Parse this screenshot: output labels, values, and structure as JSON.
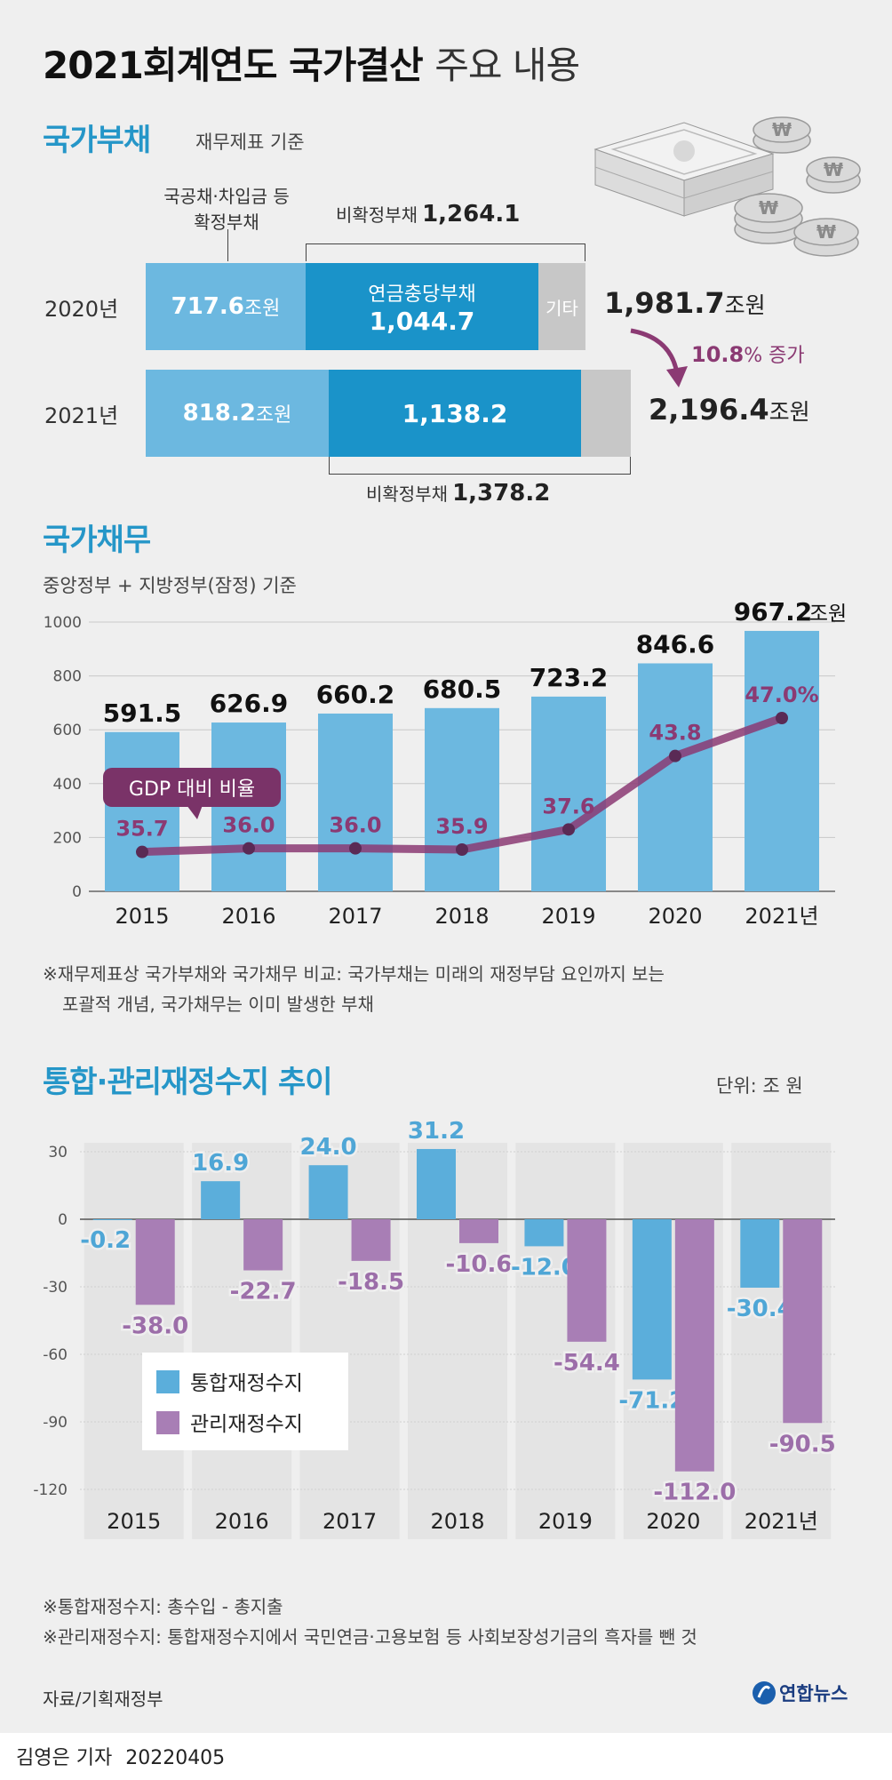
{
  "header": {
    "title_bold": "2021회계연도 국가결산",
    "title_light": "주요 내용"
  },
  "debt_section": {
    "title": "국가부채",
    "subtitle": "재무제표 기준",
    "definite_label_line1": "국공채·차입금 등",
    "definite_label_line2": "확정부채",
    "nondef_2020_label": "비확정부채",
    "nondef_2020_value": "1,264.1",
    "nondef_2021_label": "비확정부채",
    "nondef_2021_value": "1,378.2",
    "rows": [
      {
        "year": "2020년",
        "definite": "717.6",
        "definite_unit": "조원",
        "pension_label": "연금충당부채",
        "pension": "1,044.7",
        "other_label": "기타",
        "total": "1,981.7",
        "total_unit": "조원"
      },
      {
        "year": "2021년",
        "definite": "818.2",
        "definite_unit": "조원",
        "pension_label": "",
        "pension": "1,138.2",
        "other_label": "",
        "total": "2,196.4",
        "total_unit": "조원"
      }
    ],
    "increase_pct": "10.8",
    "increase_suffix": "% 증가",
    "colors": {
      "definite": "#6cb8e0",
      "pension": "#1a93c9",
      "other": "#c7c7c7",
      "arrow": "#8b3a73"
    }
  },
  "liability_section": {
    "title": "국가채무",
    "subtitle": "중앙정부 + 지방정부(잠정) 기준",
    "ratio_label": "GDP 대비 비율",
    "last_unit": "조원",
    "note_line1": "※재무제표상 국가부채와 국가채무 비교: 국가부채는 미래의 재정부담 요인까지 보는",
    "note_line2": "포괄적 개념, 국가채무는 이미 발생한 부채"
  },
  "balance_section": {
    "title": "통합·관리재정수지 추이",
    "unit": "단위: 조 원",
    "note_line1": "※통합재정수지: 총수입 - 총지출",
    "note_line2": "※관리재정수지: 통합재정수지에서 국민연금·고용보험 등 사회보장성기금의 흑자를 뺀 것"
  },
  "footer": {
    "source": "자료/기획재정부",
    "logo": "연합뉴스",
    "byline": "김영은 기자",
    "date": "20220405"
  },
  "chart_data": [
    {
      "type": "bar",
      "name": "국가채무",
      "categories": [
        "2015",
        "2016",
        "2017",
        "2018",
        "2019",
        "2020",
        "2021년"
      ],
      "series": [
        {
          "name": "",
          "values": [
            591.5,
            626.9,
            660.2,
            680.5,
            723.2,
            846.6,
            967.2
          ],
          "labels": [
            "591.5",
            "626.9",
            "660.2",
            "680.5",
            "723.2",
            "846.6",
            "967.2"
          ],
          "color": "#6cb8e0"
        },
        {
          "name": "GDP 대비 비율",
          "type": "line",
          "values": [
            35.7,
            36.0,
            36.0,
            35.9,
            37.6,
            43.8,
            47.0
          ],
          "labels": [
            "35.7",
            "36.0",
            "36.0",
            "35.9",
            "37.6",
            "43.8",
            "47.0%"
          ],
          "color": "#8b3a73"
        }
      ],
      "yticks": [
        "1000",
        "800",
        "600",
        "400",
        "200",
        "0"
      ],
      "ylim": [
        0,
        1000
      ],
      "grid": true
    },
    {
      "type": "bar",
      "name": "통합·관리재정수지",
      "categories": [
        "2015",
        "2016",
        "2017",
        "2018",
        "2019",
        "2020",
        "2021년"
      ],
      "series": [
        {
          "name": "통합재정수지",
          "values": [
            -0.2,
            16.9,
            24.0,
            31.2,
            -12.0,
            -71.2,
            -30.4
          ],
          "labels": [
            "-0.2",
            "16.9",
            "24.0",
            "31.2",
            "-12.0",
            "-71.2",
            "-30.4"
          ],
          "color": "#5baedb"
        },
        {
          "name": "관리재정수지",
          "values": [
            -38.0,
            -22.7,
            -18.5,
            -10.6,
            -54.4,
            -112.0,
            -90.5
          ],
          "labels": [
            "-38.0",
            "-22.7",
            "-18.5",
            "-10.6",
            "-54.4",
            "-112.0",
            "-90.5"
          ],
          "color": "#a87eb5"
        }
      ],
      "yticks": [
        "30",
        "0",
        "-30",
        "-60",
        "-90",
        "-120"
      ],
      "ylim": [
        -120,
        30
      ],
      "legend": "left-middle",
      "grid": true
    }
  ]
}
